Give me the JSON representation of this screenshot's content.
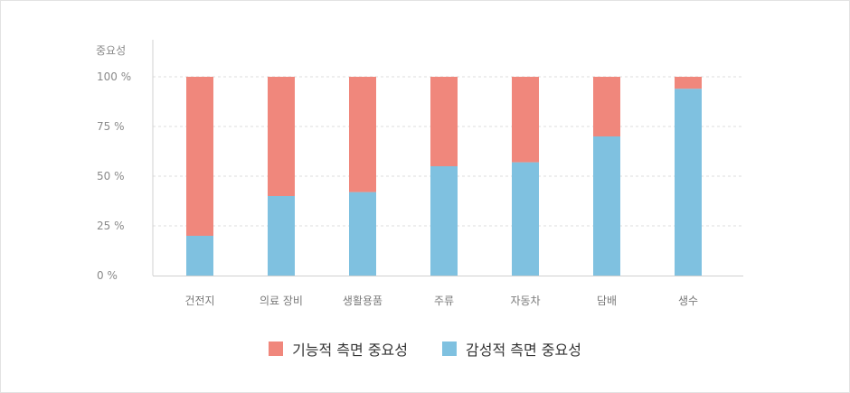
{
  "chart_data": {
    "type": "bar",
    "stacked": true,
    "y_unit_label": "중요성",
    "categories": [
      "건전지",
      "의료 장비",
      "생활용품",
      "주류",
      "자동차",
      "담배",
      "생수"
    ],
    "series": [
      {
        "name": "감성적 측면 중요성",
        "color": "#7fc1e0",
        "values": [
          20,
          40,
          42,
          55,
          57,
          70,
          94
        ]
      },
      {
        "name": "기능적 측면 중요성",
        "color": "#f0877c",
        "values": [
          80,
          60,
          58,
          45,
          43,
          30,
          6
        ]
      }
    ],
    "y_ticks": [
      "0 %",
      "25 %",
      "50 %",
      "75 %",
      "100 %"
    ],
    "ylim": [
      0,
      100
    ],
    "grid": true,
    "legend_position": "bottom"
  },
  "legend": [
    {
      "label": "기능적 측면 중요성",
      "color": "#f0877c"
    },
    {
      "label": "감성적 측면 중요성",
      "color": "#7fc1e0"
    }
  ]
}
